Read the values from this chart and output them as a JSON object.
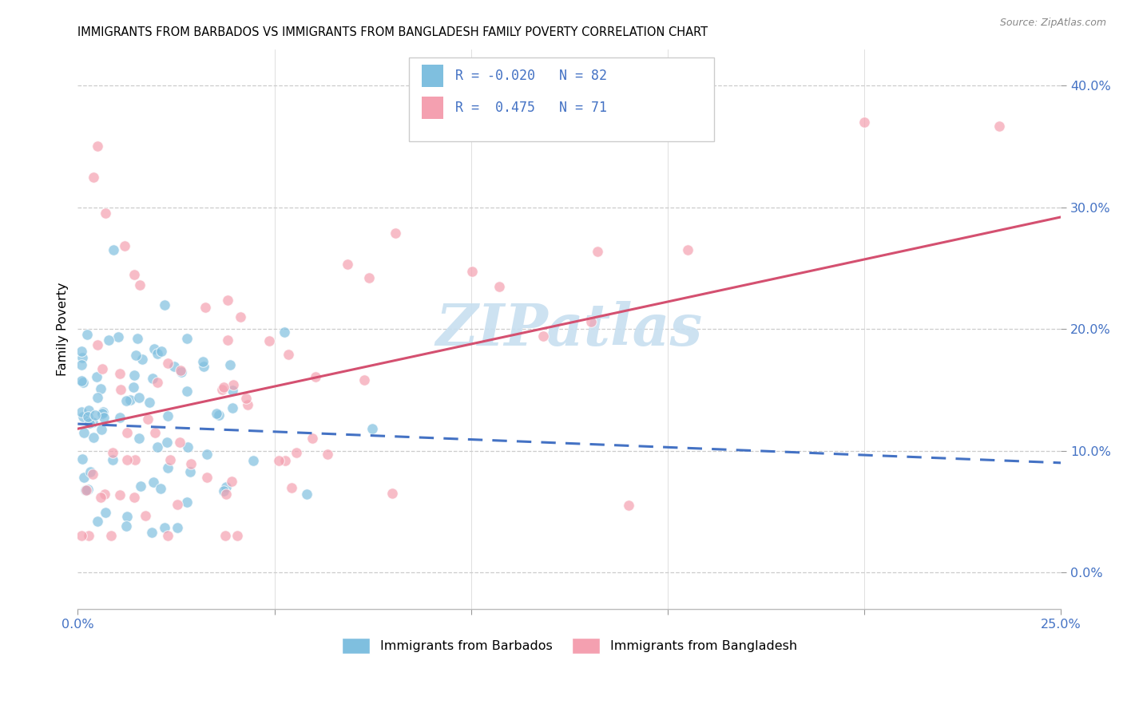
{
  "title": "IMMIGRANTS FROM BARBADOS VS IMMIGRANTS FROM BANGLADESH FAMILY POVERTY CORRELATION CHART",
  "source": "Source: ZipAtlas.com",
  "ylabel": "Family Poverty",
  "xlim": [
    0.0,
    0.25
  ],
  "ylim": [
    -0.03,
    0.43
  ],
  "ytick_vals": [
    0.0,
    0.1,
    0.2,
    0.3,
    0.4
  ],
  "ytick_labels": [
    "0.0%",
    "10.0%",
    "20.0%",
    "30.0%",
    "40.0%"
  ],
  "xtick_vals": [
    0.0,
    0.05,
    0.1,
    0.15,
    0.2,
    0.25
  ],
  "xtick_labels": [
    "0.0%",
    "",
    "",
    "",
    "",
    "25.0%"
  ],
  "legend_R_barbados": "-0.020",
  "legend_N_barbados": "82",
  "legend_R_bangladesh": "0.475",
  "legend_N_bangladesh": "71",
  "barbados_color": "#7fbfdf",
  "bangladesh_color": "#f4a0b0",
  "barbados_line_color": "#4472c4",
  "bangladesh_line_color": "#d45070",
  "tick_color": "#4472c4",
  "watermark": "ZIPatlas",
  "watermark_color": "#c8dff0",
  "barbados_line_x0": 0.0,
  "barbados_line_y0": 0.122,
  "barbados_line_x1": 0.25,
  "barbados_line_y1": 0.09,
  "bangladesh_line_x0": 0.0,
  "bangladesh_line_y0": 0.118,
  "bangladesh_line_x1": 0.25,
  "bangladesh_line_y1": 0.292
}
